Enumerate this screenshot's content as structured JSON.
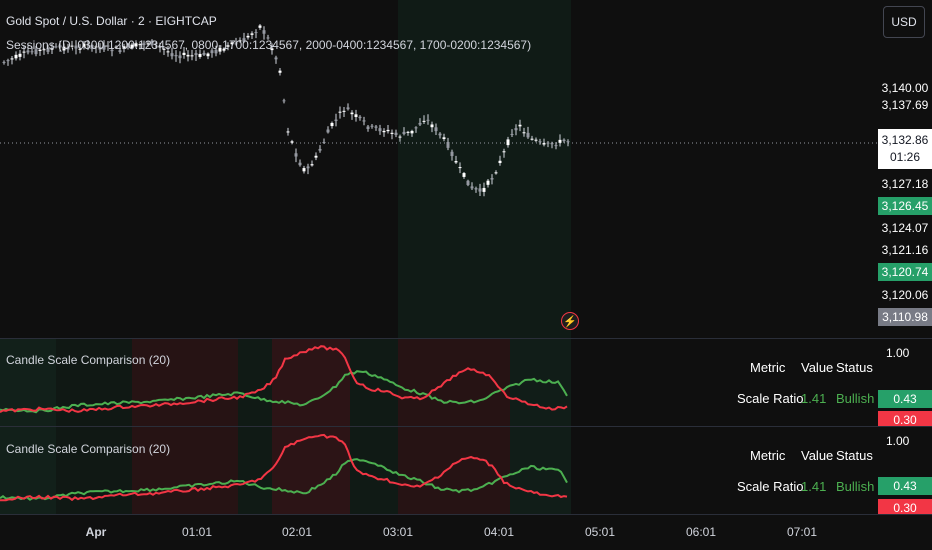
{
  "header": {
    "title": "Gold Spot / U.S. Dollar · 2 · EIGHTCAP",
    "sessions_label": "Sessions (D, 0300-1200:1234567, 0800-1700:1234567, 2000-0400:1234567, 1700-0200:1234567)",
    "currency_button": "USD"
  },
  "price_axis": {
    "labels": [
      {
        "text": "3,140.00",
        "style": "plain"
      },
      {
        "text": "3,137.69",
        "style": "plain"
      },
      {
        "text": "3,127.18",
        "style": "plain"
      },
      {
        "text": "3,126.45",
        "style": "green"
      },
      {
        "text": "3,124.07",
        "style": "plain"
      },
      {
        "text": "3,121.16",
        "style": "plain"
      },
      {
        "text": "3,120.74",
        "style": "green"
      },
      {
        "text": "3,120.06",
        "style": "plain"
      },
      {
        "text": "3,110.98",
        "style": "gray"
      }
    ],
    "current_price": "3,132.86",
    "countdown": "01:26"
  },
  "indicator_panes": [
    {
      "title": "Candle Scale Comparison (20)",
      "axis_top": "1.00",
      "badge_green": "0.43",
      "badge_red": "0.30",
      "table": {
        "headers": [
          "Metric",
          "Value",
          "Status"
        ],
        "row": {
          "metric": "Scale Ratio",
          "value": "1.41",
          "status": "Bullish"
        }
      }
    },
    {
      "title": "Candle Scale Comparison (20)",
      "axis_top": "1.00",
      "badge_green": "0.43",
      "badge_red": "0.30",
      "table": {
        "headers": [
          "Metric",
          "Value",
          "Status"
        ],
        "row": {
          "metric": "Scale Ratio",
          "value": "1.41",
          "status": "Bullish"
        }
      }
    }
  ],
  "time_axis": {
    "labels": [
      "Apr",
      "01:01",
      "02:01",
      "03:01",
      "04:01",
      "05:01",
      "06:01",
      "07:01"
    ]
  },
  "colors": {
    "background": "#0f0f0f",
    "green": "#26a069",
    "green_line": "#4caf50",
    "red": "#f23645",
    "candle": "#ffffff"
  }
}
